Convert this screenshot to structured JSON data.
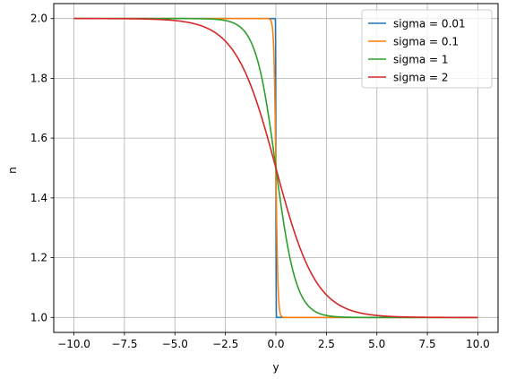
{
  "chart_data": {
    "type": "line",
    "title": "",
    "xlabel": "y",
    "ylabel": "n",
    "xlim": [
      -11.0,
      11.0
    ],
    "ylim": [
      0.95,
      2.05
    ],
    "xticks": [
      -10.0,
      -7.5,
      -5.0,
      -2.5,
      0.0,
      2.5,
      5.0,
      7.5,
      10.0
    ],
    "xtick_labels": [
      "−10.0",
      "−7.5",
      "−5.0",
      "−2.5",
      "0.0",
      "2.5",
      "5.0",
      "7.5",
      "10.0"
    ],
    "yticks": [
      1.0,
      1.2,
      1.4,
      1.6,
      1.8,
      2.0
    ],
    "ytick_labels": [
      "1.0",
      "1.2",
      "1.4",
      "1.6",
      "1.8",
      "2.0"
    ],
    "grid": true,
    "legend_position": "top-right",
    "x_range": [
      -10,
      10
    ],
    "function": "n = 1.5 - 0.5 * tanh(y / sigma)",
    "series": [
      {
        "name": "sigma = 0.01",
        "sigma": 0.01,
        "color": "#1f77b4"
      },
      {
        "name": "sigma = 0.1",
        "sigma": 0.1,
        "color": "#ff7f0e"
      },
      {
        "name": "sigma = 1",
        "sigma": 1,
        "color": "#2ca02c"
      },
      {
        "name": "sigma = 2",
        "sigma": 2,
        "color": "#d62728"
      }
    ]
  }
}
